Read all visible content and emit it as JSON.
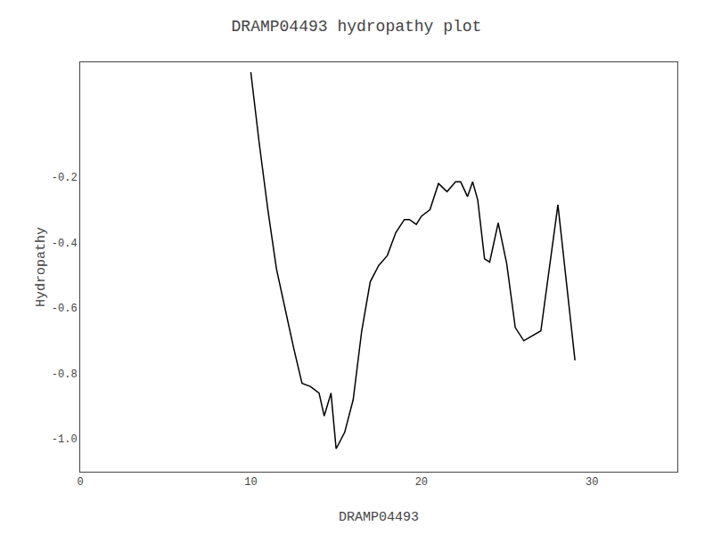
{
  "chart_data": {
    "type": "line",
    "title": "DRAMP04493 hydropathy plot",
    "xlabel": "DRAMP04493",
    "ylabel": "Hydropathy",
    "x": [
      10.0,
      10.5,
      11.0,
      11.5,
      12.0,
      12.5,
      13.0,
      13.5,
      14.0,
      14.3,
      14.7,
      15.0,
      15.5,
      16.0,
      16.5,
      17.0,
      17.5,
      18.0,
      18.5,
      19.0,
      19.3,
      19.7,
      20.0,
      20.5,
      21.0,
      21.5,
      22.0,
      22.3,
      22.7,
      23.0,
      23.3,
      23.7,
      24.0,
      24.5,
      25.0,
      25.5,
      26.0,
      27.0,
      28.0,
      29.0
    ],
    "values": [
      0.12,
      -0.1,
      -0.3,
      -0.48,
      -0.6,
      -0.72,
      -0.83,
      -0.84,
      -0.86,
      -0.93,
      -0.86,
      -1.03,
      -0.98,
      -0.88,
      -0.67,
      -0.52,
      -0.47,
      -0.44,
      -0.37,
      -0.33,
      -0.33,
      -0.345,
      -0.32,
      -0.3,
      -0.22,
      -0.245,
      -0.215,
      -0.215,
      -0.26,
      -0.215,
      -0.27,
      -0.45,
      -0.46,
      -0.34,
      -0.465,
      -0.66,
      -0.7,
      -0.67,
      -0.285,
      -0.76
    ],
    "color": "#000000",
    "xlim": [
      0,
      35
    ],
    "ylim": [
      -1.1,
      0.15
    ],
    "xticks": [
      0,
      10,
      20,
      30
    ],
    "yticks": [
      {
        "value": -1.0,
        "label": "-1.0"
      },
      -0.8,
      -0.6,
      -0.4,
      -0.2
    ],
    "grid": false
  }
}
